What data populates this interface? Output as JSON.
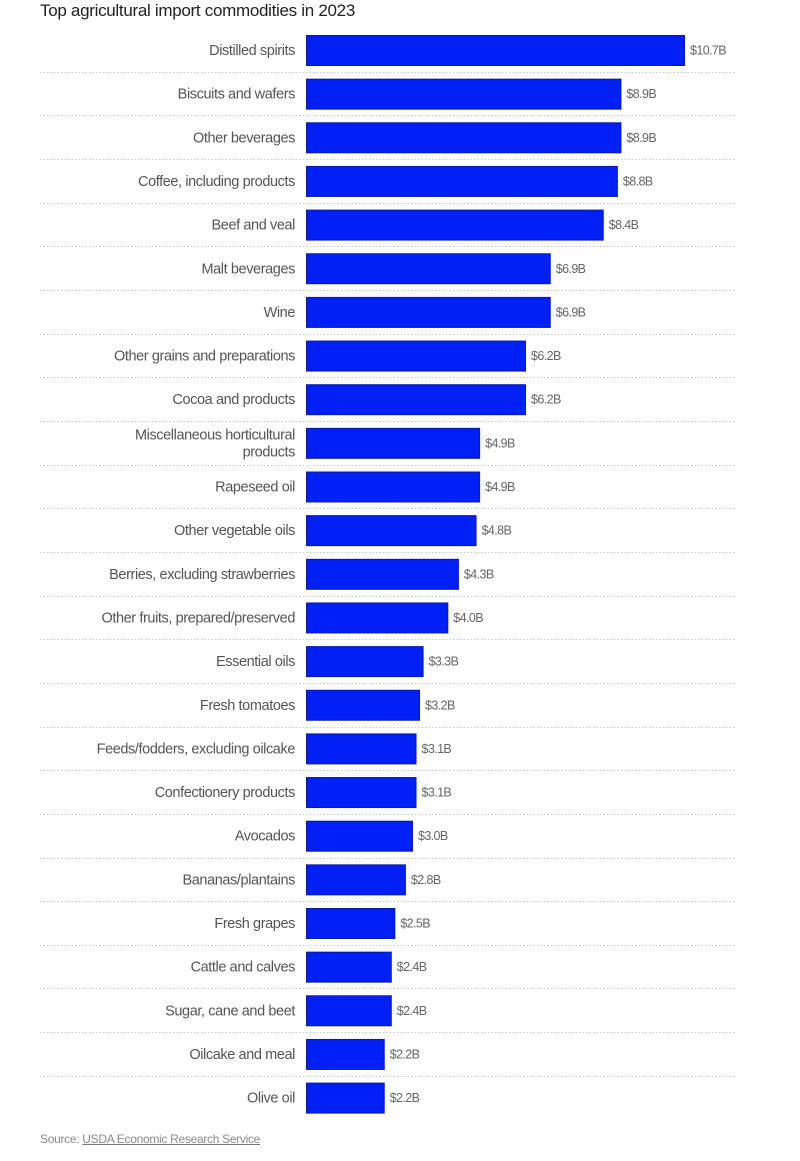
{
  "chart_data": {
    "type": "bar",
    "orientation": "horizontal",
    "title": "Top agricultural import commodities in 2023",
    "xlabel": "",
    "ylabel": "",
    "unit": "billion USD",
    "xlim": [
      0,
      10.7
    ],
    "grid": false,
    "legend": null,
    "bar_color": "#0020f5",
    "categories": [
      "Distilled spirits",
      "Biscuits and wafers",
      "Other beverages",
      "Coffee, including products",
      "Beef and veal",
      "Malt beverages",
      "Wine",
      "Other grains and preparations",
      "Cocoa and products",
      "Miscellaneous horticultural products",
      "Rapeseed oil",
      "Other vegetable oils",
      "Berries, excluding strawberries",
      "Other fruits, prepared/preserved",
      "Essential oils",
      "Fresh tomatoes",
      "Feeds/fodders, excluding oilcake",
      "Confectionery products",
      "Avocados",
      "Bananas/plantains",
      "Fresh grapes",
      "Cattle and calves",
      "Sugar, cane and beet",
      "Oilcake and meal",
      "Olive oil"
    ],
    "category_label_lines": {
      "9": [
        "Miscellaneous horticultural",
        "products"
      ]
    },
    "values": [
      10.7,
      8.9,
      8.9,
      8.8,
      8.4,
      6.9,
      6.9,
      6.2,
      6.2,
      4.9,
      4.9,
      4.8,
      4.3,
      4.0,
      3.3,
      3.2,
      3.1,
      3.1,
      3.0,
      2.8,
      2.5,
      2.4,
      2.4,
      2.2,
      2.2
    ],
    "value_labels": [
      "$10.7B",
      "$8.9B",
      "$8.9B",
      "$8.8B",
      "$8.4B",
      "$6.9B",
      "$6.9B",
      "$6.2B",
      "$6.2B",
      "$4.9B",
      "$4.9B",
      "$4.8B",
      "$4.3B",
      "$4.0B",
      "$3.3B",
      "$3.2B",
      "$3.1B",
      "$3.1B",
      "$3.0B",
      "$2.8B",
      "$2.5B",
      "$2.4B",
      "$2.4B",
      "$2.2B",
      "$2.2B"
    ]
  },
  "source": {
    "prefix": "Source: ",
    "link_text": "USDA Economic Research Service"
  }
}
